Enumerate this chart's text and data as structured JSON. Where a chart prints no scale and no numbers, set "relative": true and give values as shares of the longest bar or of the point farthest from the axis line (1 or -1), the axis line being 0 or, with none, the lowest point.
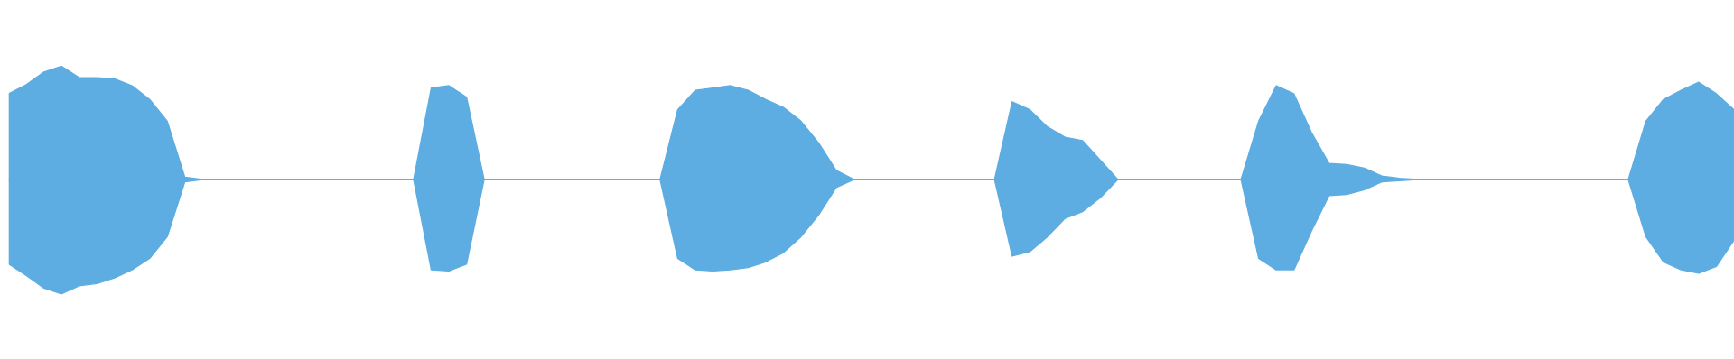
{
  "chart_data": {
    "type": "area",
    "relative": true,
    "categories": [
      null,
      null,
      null,
      null,
      null,
      null,
      null,
      null,
      null,
      null,
      null,
      null,
      null,
      null,
      null,
      null,
      null,
      null,
      null,
      null,
      null,
      null,
      null,
      null,
      null,
      null,
      null,
      null,
      null,
      null,
      null,
      null,
      null,
      null,
      null,
      null,
      null,
      null,
      null,
      null,
      null,
      null,
      null,
      null,
      null,
      null,
      null,
      null,
      null,
      null,
      null,
      null,
      null,
      null,
      null,
      null,
      null,
      null,
      null,
      null,
      null,
      null,
      null,
      null,
      null,
      null,
      null,
      null,
      null,
      null,
      null,
      null,
      null,
      null,
      null,
      null,
      null,
      null,
      null,
      null,
      null,
      null,
      null,
      null,
      null,
      null,
      null,
      null,
      null,
      null,
      null,
      null,
      null,
      null,
      null,
      null,
      null,
      null,
      null
    ],
    "series": [
      {
        "color": "#5dade2",
        "values": [
          0.75,
          0.83,
          0.94,
          0.99,
          0.89,
          0.89,
          0.88,
          0.82,
          0.7,
          0.51,
          0.02,
          0,
          0,
          0,
          0,
          0,
          0,
          0,
          0,
          0,
          0,
          0,
          0,
          0,
          0.8,
          0.82,
          0.72,
          0,
          0,
          0,
          0,
          0,
          0,
          0,
          0,
          0,
          0,
          0,
          0.61,
          0.78,
          0.8,
          0.82,
          0.78,
          0.7,
          0.63,
          0.51,
          0.32,
          0.08,
          0,
          0,
          0,
          0,
          0,
          0,
          0,
          0,
          0,
          0.68,
          0.61,
          0.46,
          0.37,
          0.34,
          0.17,
          0,
          0,
          0,
          0,
          0,
          0,
          0,
          0,
          0.51,
          0.82,
          0.75,
          0.41,
          0.14,
          0.13,
          0.1,
          0.03,
          0.01,
          0,
          0,
          0,
          0,
          0,
          0,
          0,
          0,
          0,
          0,
          0,
          0,
          0,
          0.51,
          0.7,
          0.78,
          0.85,
          0.75,
          0.61
        ]
      },
      {
        "color": "#5dade2",
        "values": [
          -0.74,
          -0.84,
          -0.95,
          -1.0,
          -0.93,
          -0.91,
          -0.86,
          -0.79,
          -0.69,
          -0.5,
          -0.02,
          0,
          0,
          0,
          0,
          0,
          0,
          0,
          0,
          0,
          0,
          0,
          0,
          0,
          -0.79,
          -0.8,
          -0.74,
          0,
          0,
          0,
          0,
          0,
          0,
          0,
          0,
          0,
          0,
          0,
          -0.69,
          -0.79,
          -0.8,
          -0.79,
          -0.77,
          -0.72,
          -0.64,
          -0.5,
          -0.31,
          -0.07,
          0,
          0,
          0,
          0,
          0,
          0,
          0,
          0,
          0,
          -0.67,
          -0.63,
          -0.5,
          -0.34,
          -0.28,
          -0.16,
          0,
          0,
          0,
          0,
          0,
          0,
          0,
          0,
          -0.69,
          -0.79,
          -0.79,
          -0.45,
          -0.14,
          -0.13,
          -0.09,
          -0.02,
          -0.01,
          0,
          0,
          0,
          0,
          0,
          0,
          0,
          0,
          0,
          0,
          0,
          0,
          0,
          -0.5,
          -0.72,
          -0.79,
          -0.82,
          -0.76,
          -0.53
        ]
      }
    ]
  }
}
